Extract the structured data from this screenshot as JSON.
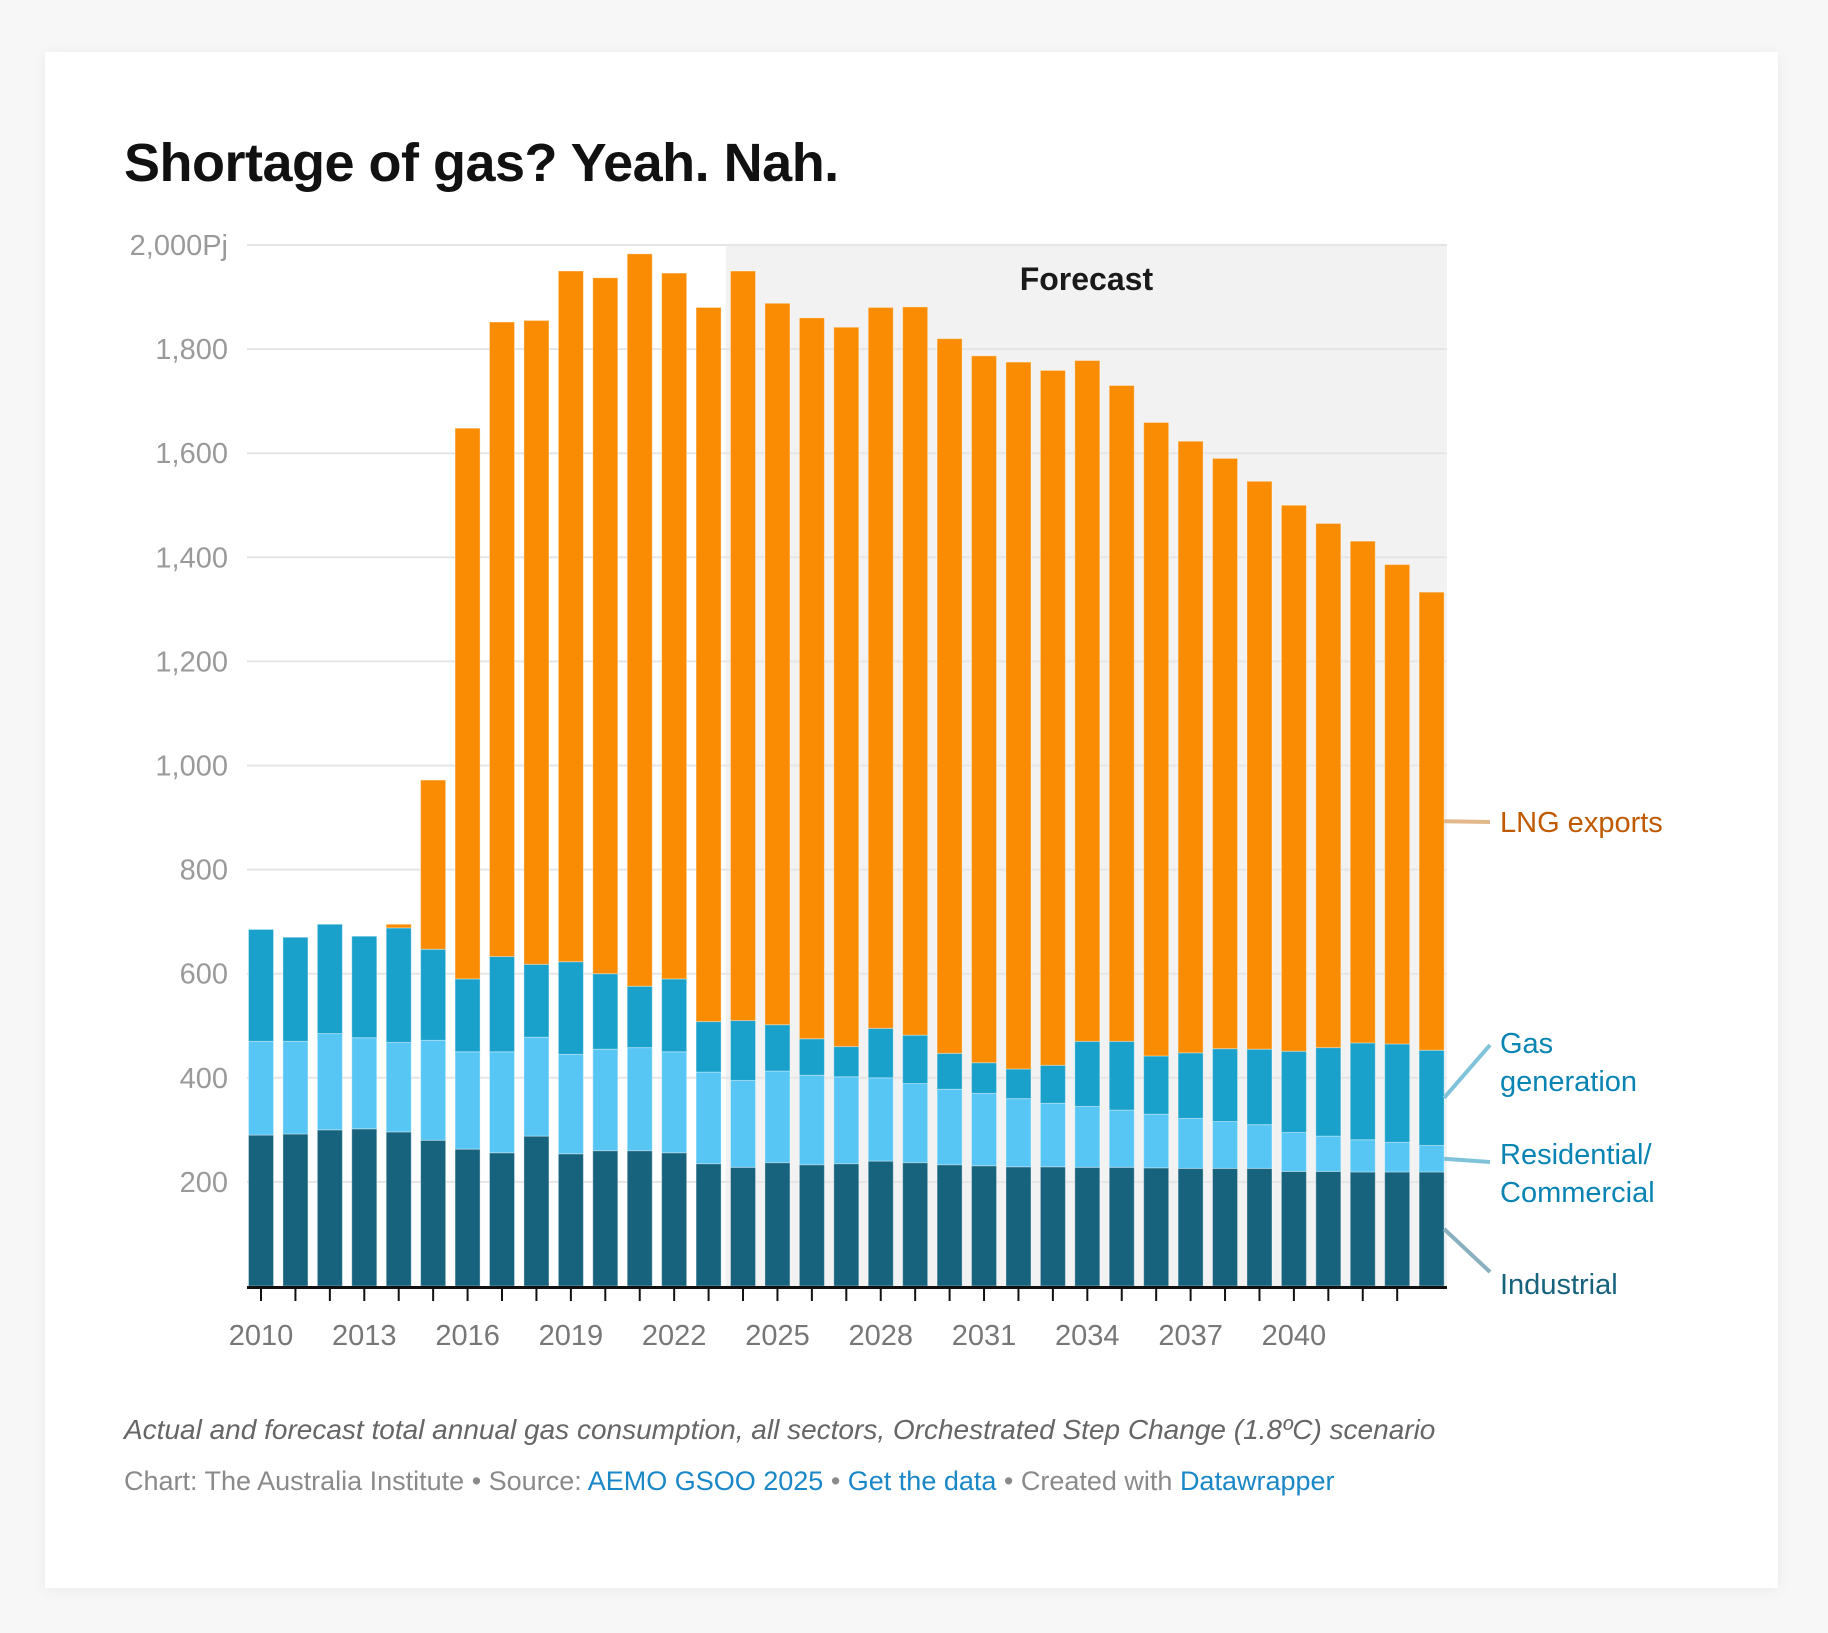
{
  "title": "Shortage of gas? Yeah. Nah.",
  "description": "Actual and forecast total annual gas consumption, all sectors, Orchestrated Step Change (1.8ºC) scenario",
  "credit": {
    "chart_prefix": "Chart: The Australia Institute",
    "sep": " • ",
    "source_prefix": "Source: ",
    "source_link": "AEMO GSOO 2025",
    "data_link": "Get the data",
    "created_prefix": "Created with ",
    "created_link": "Datawrapper"
  },
  "colors": {
    "industrial": "#17627d",
    "residential": "#57c6f4",
    "gas_generation": "#19a1cc",
    "lng_exports": "#f98c02",
    "forecast_bg": "#f2f2f2",
    "lng_label": "#c05a00",
    "blue_label": "#0a84b3",
    "industrial_label": "#17627d",
    "link": "#1a87c7"
  },
  "chart_data": {
    "type": "bar",
    "stacked": true,
    "title": "Shortage of gas? Yeah. Nah.",
    "xlabel": "",
    "ylabel": "",
    "y_unit_suffix": "Pj",
    "ylim": [
      0,
      2000
    ],
    "yticks": [
      200,
      400,
      600,
      800,
      1000,
      1200,
      1400,
      1600,
      1800,
      2000
    ],
    "ytick_labels": [
      "200",
      "400",
      "600",
      "800",
      "1,000",
      "1,200",
      "1,400",
      "1,600",
      "1,800",
      "2,000Pj"
    ],
    "grid": true,
    "x": [
      2010,
      2011,
      2012,
      2013,
      2014,
      2015,
      2016,
      2017,
      2018,
      2019,
      2020,
      2021,
      2022,
      2023,
      2024,
      2025,
      2026,
      2027,
      2028,
      2029,
      2030,
      2031,
      2032,
      2033,
      2034,
      2035,
      2036,
      2037,
      2038,
      2039,
      2040,
      2041,
      2042,
      2043,
      2044
    ],
    "xtick_labels": [
      "2010",
      "2013",
      "2016",
      "2019",
      "2022",
      "2025",
      "2028",
      "2031",
      "2034",
      "2037",
      "2040"
    ],
    "forecast_start": 2024,
    "forecast_label": "Forecast",
    "series": [
      {
        "name": "Industrial",
        "key": "industrial",
        "values": [
          290,
          292,
          300,
          302,
          296,
          280,
          263,
          256,
          288,
          254,
          260,
          260,
          256,
          235,
          228,
          237,
          233,
          235,
          240,
          237,
          233,
          231,
          229,
          229,
          228,
          228,
          227,
          226,
          226,
          226,
          220,
          220,
          219,
          219,
          219
        ]
      },
      {
        "name": "Residential/ Commercial",
        "key": "residential",
        "values": [
          180,
          178,
          185,
          175,
          172,
          192,
          187,
          194,
          190,
          191,
          195,
          198,
          194,
          176,
          167,
          176,
          172,
          167,
          160,
          152,
          145,
          139,
          131,
          122,
          117,
          110,
          103,
          96,
          90,
          84,
          75,
          68,
          62,
          57,
          51
        ]
      },
      {
        "name": "Gas generation",
        "key": "gas_generation",
        "values": [
          215,
          200,
          210,
          195,
          220,
          175,
          140,
          183,
          140,
          178,
          145,
          118,
          140,
          97,
          115,
          89,
          70,
          58,
          95,
          93,
          69,
          59,
          57,
          73,
          125,
          132,
          112,
          126,
          140,
          145,
          156,
          170,
          186,
          189,
          183
        ]
      },
      {
        "name": "LNG exports",
        "key": "lng_exports",
        "values": [
          0,
          0,
          0,
          0,
          7,
          325,
          1058,
          1219,
          1237,
          1327,
          1337,
          1407,
          1356,
          1372,
          1440,
          1386,
          1385,
          1382,
          1385,
          1399,
          1373,
          1358,
          1358,
          1335,
          1308,
          1260,
          1217,
          1175,
          1134,
          1091,
          1049,
          1007,
          964,
          921,
          880
        ]
      }
    ],
    "legend": [
      {
        "key": "lng_exports",
        "lines": [
          "LNG exports"
        ]
      },
      {
        "key": "gas_generation",
        "lines": [
          "Gas",
          "generation"
        ]
      },
      {
        "key": "residential",
        "lines": [
          "Residential/",
          "Commercial"
        ]
      },
      {
        "key": "industrial",
        "lines": [
          "Industrial"
        ]
      }
    ],
    "legend_placement": "right (direct labels)"
  }
}
